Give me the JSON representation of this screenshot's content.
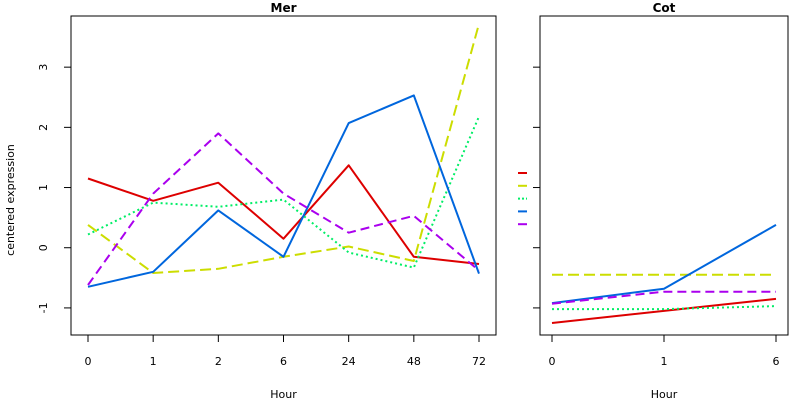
{
  "chart_data": [
    {
      "type": "line",
      "title": "Mer",
      "xlabel": "Hour",
      "ylabel": "centered expression",
      "categories": [
        "0",
        "1",
        "2",
        "6",
        "24",
        "48",
        "72"
      ],
      "ylim": [
        -1.45,
        3.85
      ],
      "yticks": [
        "-1",
        "0",
        "1",
        "2",
        "3"
      ],
      "grid": false,
      "series": [
        {
          "color": "#dd0000",
          "dash": "solid",
          "values": [
            1.15,
            0.78,
            1.08,
            0.15,
            1.37,
            -0.15,
            -0.27
          ]
        },
        {
          "color": "#ccdd00",
          "dash": "long-dash",
          "values": [
            0.38,
            -0.42,
            -0.35,
            -0.15,
            0.02,
            -0.22,
            3.72
          ]
        },
        {
          "color": "#00ee66",
          "dash": "dotted",
          "values": [
            0.22,
            0.75,
            0.68,
            0.8,
            -0.08,
            -0.33,
            2.18
          ]
        },
        {
          "color": "#0066dd",
          "dash": "solid",
          "values": [
            -0.65,
            -0.4,
            0.62,
            -0.15,
            2.07,
            2.53,
            -0.43
          ]
        },
        {
          "color": "#aa00ee",
          "dash": "dashed",
          "values": [
            -0.62,
            0.9,
            1.9,
            0.9,
            0.25,
            0.53,
            -0.38
          ]
        }
      ]
    },
    {
      "type": "line",
      "title": "Cot",
      "xlabel": "Hour",
      "categories": [
        "0",
        "1",
        "6"
      ],
      "ylim": [
        -1.45,
        3.85
      ],
      "grid": false,
      "series": [
        {
          "color": "#dd0000",
          "dash": "solid",
          "values": [
            -1.25,
            -1.05,
            -0.85
          ]
        },
        {
          "color": "#ccdd00",
          "dash": "long-dash",
          "values": [
            -0.45,
            -0.45,
            -0.45
          ]
        },
        {
          "color": "#00ee66",
          "dash": "dotted",
          "values": [
            -1.02,
            -1.02,
            -0.97
          ]
        },
        {
          "color": "#0066dd",
          "dash": "solid",
          "values": [
            -0.92,
            -0.68,
            0.38
          ]
        },
        {
          "color": "#aa00ee",
          "dash": "dashed",
          "values": [
            -0.93,
            -0.73,
            -0.73
          ]
        }
      ]
    }
  ],
  "legend": {
    "placement": "between-panels",
    "entries": [
      {
        "color": "#dd0000",
        "dash": "solid"
      },
      {
        "color": "#ccdd00",
        "dash": "long-dash"
      },
      {
        "color": "#00ee66",
        "dash": "dotted"
      },
      {
        "color": "#0066dd",
        "dash": "solid"
      },
      {
        "color": "#aa00ee",
        "dash": "dashed"
      }
    ]
  }
}
